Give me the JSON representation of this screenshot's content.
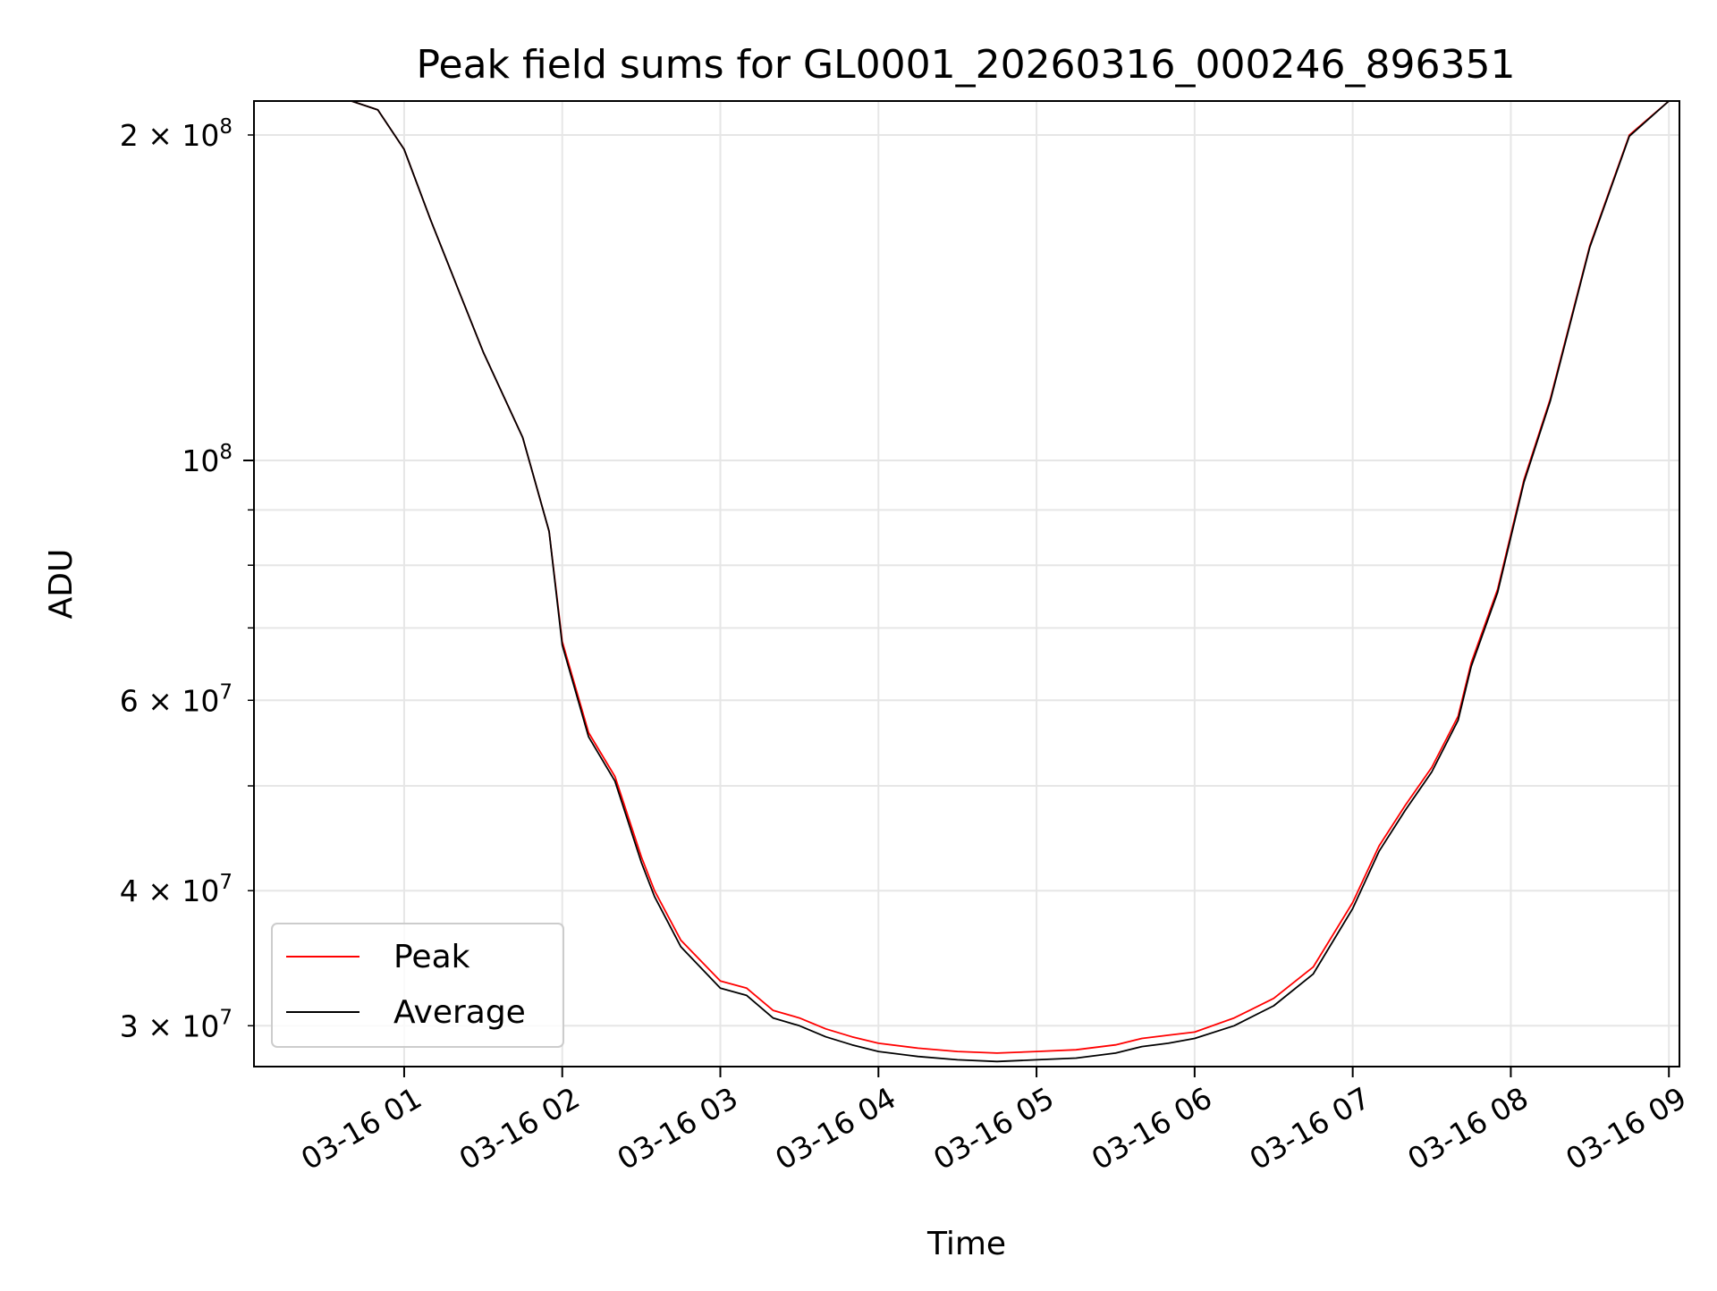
{
  "chart_data": {
    "type": "line",
    "title": "Peak field sums for GL0001_20260316_000246_896351",
    "xlabel": "Time",
    "ylabel": "ADU",
    "x_scale": "time",
    "y_scale": "log",
    "grid": true,
    "xlim": [
      "2026-03-16 00:03",
      "2026-03-16 09:04"
    ],
    "ylim": [
      27500000,
      215000000
    ],
    "x_ticks": [
      {
        "value": "2026-03-16 01:00",
        "label": "03-16 01"
      },
      {
        "value": "2026-03-16 02:00",
        "label": "03-16 02"
      },
      {
        "value": "2026-03-16 03:00",
        "label": "03-16 03"
      },
      {
        "value": "2026-03-16 04:00",
        "label": "03-16 04"
      },
      {
        "value": "2026-03-16 05:00",
        "label": "03-16 05"
      },
      {
        "value": "2026-03-16 06:00",
        "label": "03-16 06"
      },
      {
        "value": "2026-03-16 07:00",
        "label": "03-16 07"
      },
      {
        "value": "2026-03-16 08:00",
        "label": "03-16 08"
      },
      {
        "value": "2026-03-16 09:00",
        "label": "03-16 09"
      }
    ],
    "y_ticks_major": [
      {
        "value": 100000000,
        "label": "10",
        "sup": "8"
      }
    ],
    "y_ticks_minor": [
      {
        "value": 30000000,
        "label": "3 × 10",
        "sup": "7"
      },
      {
        "value": 40000000,
        "label": "4 × 10",
        "sup": "7"
      },
      {
        "value": 50000000,
        "label": "",
        "sup": ""
      },
      {
        "value": 60000000,
        "label": "6 × 10",
        "sup": "7"
      },
      {
        "value": 70000000,
        "label": "",
        "sup": ""
      },
      {
        "value": 80000000,
        "label": "",
        "sup": ""
      },
      {
        "value": 90000000,
        "label": "",
        "sup": ""
      },
      {
        "value": 200000000,
        "label": "2 × 10",
        "sup": "8"
      }
    ],
    "legend": {
      "position": "lower-left"
    },
    "series": [
      {
        "name": "Peak",
        "color": "#ff0000",
        "x": [
          "2026-03-16 00:03",
          "2026-03-16 00:40",
          "2026-03-16 00:50",
          "2026-03-16 01:00",
          "2026-03-16 01:10",
          "2026-03-16 01:20",
          "2026-03-16 01:30",
          "2026-03-16 01:45",
          "2026-03-16 01:55",
          "2026-03-16 02:00",
          "2026-03-16 02:10",
          "2026-03-16 02:20",
          "2026-03-16 02:30",
          "2026-03-16 02:35",
          "2026-03-16 02:45",
          "2026-03-16 03:00",
          "2026-03-16 03:10",
          "2026-03-16 03:20",
          "2026-03-16 03:30",
          "2026-03-16 03:40",
          "2026-03-16 03:50",
          "2026-03-16 04:00",
          "2026-03-16 04:15",
          "2026-03-16 04:30",
          "2026-03-16 04:45",
          "2026-03-16 05:00",
          "2026-03-16 05:15",
          "2026-03-16 05:30",
          "2026-03-16 05:40",
          "2026-03-16 05:50",
          "2026-03-16 06:00",
          "2026-03-16 06:15",
          "2026-03-16 06:30",
          "2026-03-16 06:45",
          "2026-03-16 07:00",
          "2026-03-16 07:10",
          "2026-03-16 07:20",
          "2026-03-16 07:30",
          "2026-03-16 07:40",
          "2026-03-16 07:45",
          "2026-03-16 07:55",
          "2026-03-16 08:05",
          "2026-03-16 08:15",
          "2026-03-16 08:30",
          "2026-03-16 08:45",
          "2026-03-16 09:00",
          "2026-03-16 09:04"
        ],
        "values": [
          215000000,
          215000000,
          211000000,
          194000000,
          167000000,
          145000000,
          126000000,
          105000000,
          86000000,
          68000000,
          56000000,
          51000000,
          43000000,
          40000000,
          36000000,
          33000000,
          32500000,
          31000000,
          30500000,
          29800000,
          29300000,
          28900000,
          28600000,
          28400000,
          28300000,
          28400000,
          28500000,
          28800000,
          29200000,
          29400000,
          29600000,
          30500000,
          31800000,
          34000000,
          39000000,
          44000000,
          48000000,
          52000000,
          58000000,
          65000000,
          76000000,
          96000000,
          114000000,
          158000000,
          200000000,
          215000000,
          215000000
        ]
      },
      {
        "name": "Average",
        "color": "#000000",
        "x": [
          "2026-03-16 00:03",
          "2026-03-16 00:40",
          "2026-03-16 00:50",
          "2026-03-16 01:00",
          "2026-03-16 01:10",
          "2026-03-16 01:20",
          "2026-03-16 01:30",
          "2026-03-16 01:45",
          "2026-03-16 01:55",
          "2026-03-16 02:00",
          "2026-03-16 02:10",
          "2026-03-16 02:20",
          "2026-03-16 02:30",
          "2026-03-16 02:35",
          "2026-03-16 02:45",
          "2026-03-16 03:00",
          "2026-03-16 03:10",
          "2026-03-16 03:20",
          "2026-03-16 03:30",
          "2026-03-16 03:40",
          "2026-03-16 03:50",
          "2026-03-16 04:00",
          "2026-03-16 04:15",
          "2026-03-16 04:30",
          "2026-03-16 04:45",
          "2026-03-16 05:00",
          "2026-03-16 05:15",
          "2026-03-16 05:30",
          "2026-03-16 05:40",
          "2026-03-16 05:50",
          "2026-03-16 06:00",
          "2026-03-16 06:15",
          "2026-03-16 06:30",
          "2026-03-16 06:45",
          "2026-03-16 07:00",
          "2026-03-16 07:10",
          "2026-03-16 07:20",
          "2026-03-16 07:30",
          "2026-03-16 07:40",
          "2026-03-16 07:45",
          "2026-03-16 07:55",
          "2026-03-16 08:05",
          "2026-03-16 08:15",
          "2026-03-16 08:30",
          "2026-03-16 08:45",
          "2026-03-16 09:00",
          "2026-03-16 09:04"
        ],
        "values": [
          215000000,
          215000000,
          211000000,
          194000000,
          167000000,
          145000000,
          126000000,
          105000000,
          86000000,
          67500000,
          55500000,
          50500000,
          42500000,
          39500000,
          35500000,
          32500000,
          32000000,
          30500000,
          30000000,
          29300000,
          28800000,
          28400000,
          28100000,
          27900000,
          27800000,
          27900000,
          28000000,
          28300000,
          28700000,
          28900000,
          29200000,
          30000000,
          31300000,
          33500000,
          38500000,
          43500000,
          47500000,
          51500000,
          57500000,
          64500000,
          75500000,
          95500000,
          113500000,
          157500000,
          199500000,
          215000000,
          215000000
        ]
      }
    ]
  }
}
